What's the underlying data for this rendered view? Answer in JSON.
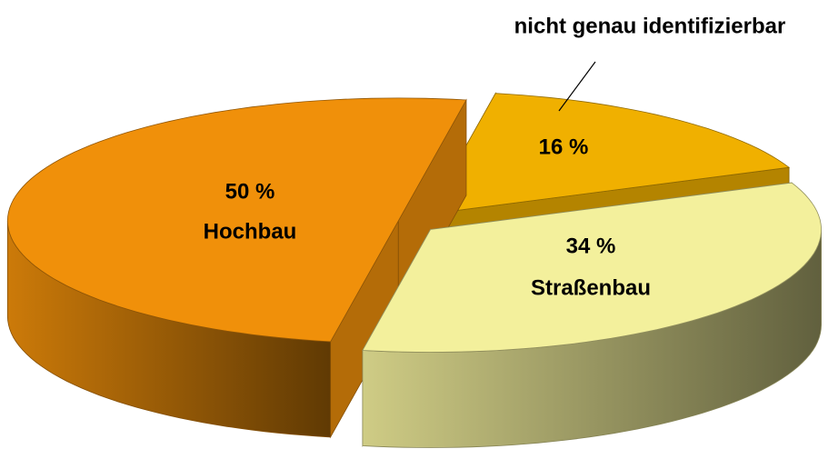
{
  "chart_data": {
    "type": "pie3d",
    "categories": [
      "Hochbau",
      "Straßenbau",
      "nicht genau identifizierbar"
    ],
    "values": [
      50,
      34,
      16
    ],
    "value_labels": [
      "50 %",
      "34 %",
      "16 %"
    ],
    "colors": [
      "#f0900a",
      "#f3f09c",
      "#f0b000"
    ]
  }
}
